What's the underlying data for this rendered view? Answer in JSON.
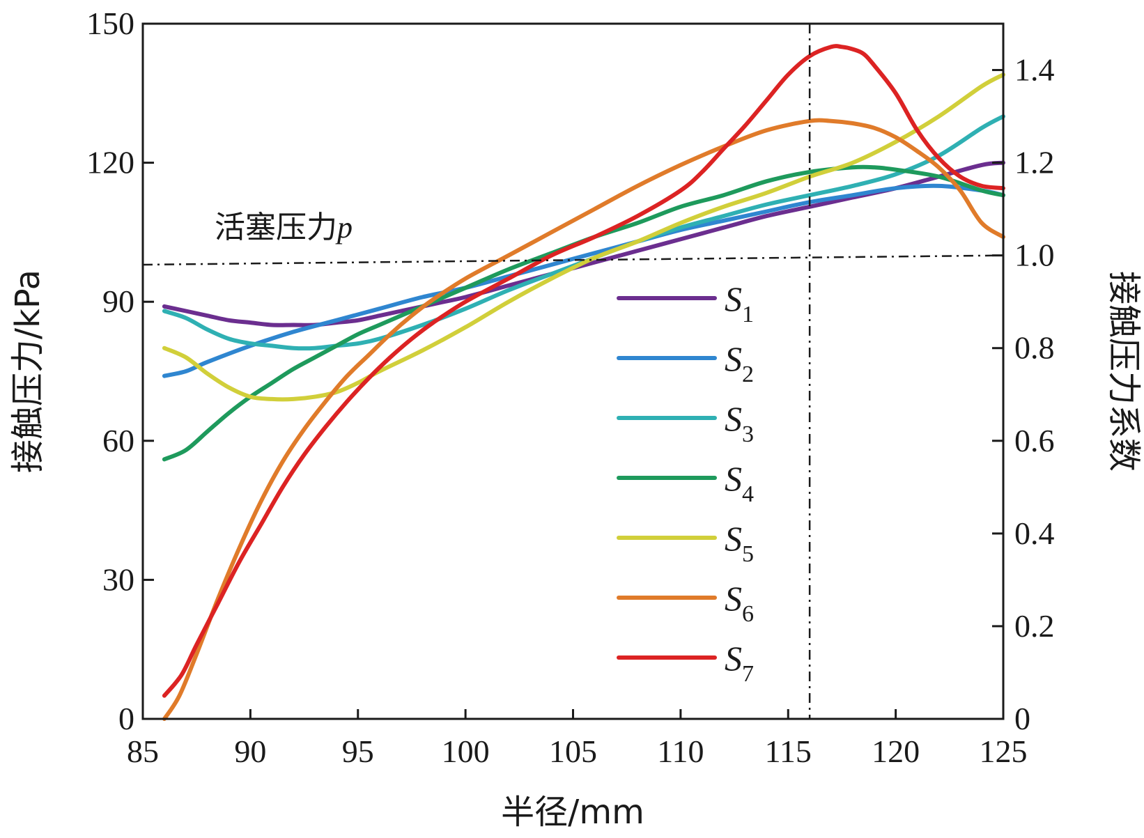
{
  "chart_data": {
    "type": "line",
    "xlabel": "半径/mm",
    "ylabel": "接触压力/kPa",
    "y2label": "接触压力系数",
    "xlim": [
      85,
      125
    ],
    "ylim": [
      0,
      150
    ],
    "y2lim": [
      0,
      1.5
    ],
    "xticks": [
      "85",
      "90",
      "95",
      "100",
      "105",
      "110",
      "115",
      "120",
      "125"
    ],
    "yticks": [
      "0",
      "30",
      "60",
      "90",
      "120",
      "150"
    ],
    "y2ticks": [
      "0",
      "0.2",
      "0.4",
      "0.6",
      "0.8",
      "1.0",
      "1.2",
      "1.4"
    ],
    "grid": false,
    "legend_position": "center-right",
    "annotations": {
      "piston_label": "活塞压力",
      "piston_var": "p",
      "piston_line": {
        "x": [
          85,
          125
        ],
        "y": [
          98,
          100
        ]
      },
      "ref_x": 116
    },
    "series": [
      {
        "name": "S",
        "sub": "1",
        "color": "#6b2e8f",
        "x": [
          86,
          87,
          88,
          89,
          90,
          91,
          92,
          93,
          94,
          95,
          96,
          97,
          98,
          99,
          100,
          102,
          104,
          106,
          108,
          110,
          112,
          114,
          116,
          118,
          120,
          122,
          124,
          125
        ],
        "y": [
          89,
          88,
          87,
          86,
          85.5,
          85,
          85,
          85,
          85.5,
          86,
          87,
          88,
          89,
          90,
          91,
          93.5,
          96,
          98.5,
          101,
          103.5,
          106,
          108.5,
          110.5,
          112.5,
          114.5,
          117,
          119.5,
          120
        ]
      },
      {
        "name": "S",
        "sub": "2",
        "color": "#2f86d0",
        "x": [
          86,
          87,
          88,
          90,
          92,
          94,
          96,
          98,
          100,
          102,
          104,
          106,
          108,
          110,
          112,
          114,
          116,
          118,
          120,
          122,
          124,
          125
        ],
        "y": [
          74,
          75,
          77,
          80.5,
          83.5,
          86,
          88.5,
          91,
          93,
          95.5,
          98,
          100.5,
          103,
          105.5,
          107.5,
          109.5,
          111.5,
          113,
          114.5,
          115,
          114,
          113
        ]
      },
      {
        "name": "S",
        "sub": "3",
        "color": "#2fb0b3",
        "x": [
          86,
          87,
          88,
          89,
          90,
          91,
          92,
          93,
          94,
          95,
          96,
          98,
          100,
          102,
          104,
          106,
          108,
          110,
          112,
          114,
          116,
          118,
          120,
          122,
          124,
          125
        ],
        "y": [
          88,
          86.5,
          84,
          82,
          81,
          80.5,
          80,
          80,
          80.5,
          81,
          82,
          85,
          88.5,
          92.5,
          96,
          99.5,
          103,
          106,
          108.5,
          111,
          113,
          115,
          117.5,
          121.5,
          127.5,
          130
        ]
      },
      {
        "name": "S",
        "sub": "4",
        "color": "#1e9a5c",
        "x": [
          86,
          87,
          88,
          89,
          90,
          91,
          92,
          93,
          94,
          95,
          96,
          98,
          100,
          102,
          104,
          106,
          108,
          110,
          112,
          114,
          116,
          118,
          119,
          120,
          122,
          124,
          125
        ],
        "y": [
          56,
          58,
          62,
          66,
          69.5,
          72.5,
          75.5,
          78,
          80.5,
          83,
          85,
          89,
          93,
          97,
          100.5,
          104,
          107,
          110.5,
          113,
          116,
          118,
          119,
          119,
          118.5,
          117,
          114,
          113
        ]
      },
      {
        "name": "S",
        "sub": "5",
        "color": "#d1cf3a",
        "x": [
          86,
          87,
          88,
          89,
          90,
          91,
          92,
          93,
          94,
          95,
          96,
          98,
          100,
          102,
          104,
          106,
          108,
          110,
          112,
          114,
          116,
          118,
          120,
          122,
          124,
          125
        ],
        "y": [
          80,
          78,
          74.5,
          71.5,
          69.5,
          69,
          69,
          69.5,
          70.5,
          72.5,
          75,
          79.5,
          84.5,
          90,
          95,
          99.5,
          103,
          107,
          110.5,
          113.5,
          117,
          120,
          124.5,
          130,
          136.5,
          139
        ]
      },
      {
        "name": "S",
        "sub": "6",
        "color": "#e07b2a",
        "x": [
          86,
          86.7,
          87.5,
          88.5,
          89.5,
          90.5,
          91.5,
          92.5,
          93.5,
          94.5,
          95.5,
          96.5,
          97.5,
          98.5,
          100,
          102,
          104,
          106,
          108,
          110,
          112,
          114,
          116,
          117,
          118,
          119,
          120,
          121,
          122,
          123,
          124,
          125
        ],
        "y": [
          0,
          5,
          14,
          26,
          37,
          47,
          55.5,
          62.5,
          68.5,
          74,
          78.5,
          83,
          87,
          90.5,
          95,
          100,
          105,
          110,
          115,
          119.5,
          123.5,
          127,
          129,
          129,
          128.5,
          127.5,
          125.5,
          122.5,
          119,
          114,
          107,
          104
        ]
      },
      {
        "name": "S",
        "sub": "7",
        "color": "#dc2323",
        "x": [
          86,
          86.8,
          87.5,
          88.5,
          89.5,
          90.5,
          91.5,
          92.5,
          93.5,
          94.5,
          95.5,
          96.5,
          97.5,
          98.5,
          100,
          102,
          104,
          106,
          108,
          110,
          111,
          112,
          113,
          114,
          115,
          116,
          117,
          117.5,
          118,
          118.5,
          119,
          120,
          121,
          122,
          123,
          124,
          125
        ],
        "y": [
          5,
          9.5,
          16,
          25,
          34,
          42,
          50,
          57,
          63,
          68.5,
          73.5,
          78,
          82,
          85.5,
          90,
          95,
          100,
          104,
          108.5,
          114,
          118,
          123,
          128,
          133.5,
          139,
          143,
          145,
          145,
          144.5,
          143.5,
          141,
          135,
          127,
          121,
          117,
          115,
          114.5
        ]
      }
    ]
  }
}
